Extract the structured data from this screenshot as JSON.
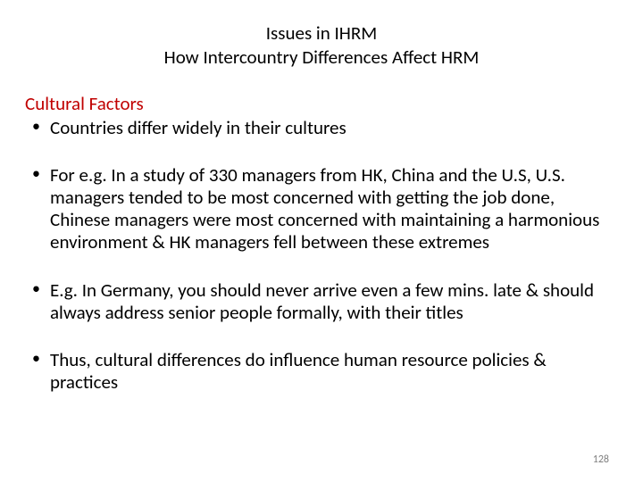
{
  "title": {
    "line1": "Issues in IHRM",
    "line2": "How Intercountry Differences Affect HRM"
  },
  "section_heading": "Cultural Factors",
  "bullets": [
    "Countries differ widely in their cultures",
    "For e.g. In a study of 330 managers from HK, China and the U.S, U.S. managers tended to be most concerned with getting the job done, Chinese managers were most concerned with maintaining a harmonious environment & HK managers fell between these extremes",
    "E.g. In Germany, you should never arrive even a few mins. late & should always address senior people formally, with their titles",
    "Thus, cultural differences do influence human resource policies & practices"
  ],
  "page_number": "128",
  "colors": {
    "heading_red": "#c00000",
    "text_black": "#000000",
    "page_num_gray": "#808080",
    "background": "#ffffff"
  },
  "typography": {
    "title_fontsize": 21,
    "body_fontsize": 21,
    "page_num_fontsize": 12,
    "font_family": "Calibri"
  }
}
